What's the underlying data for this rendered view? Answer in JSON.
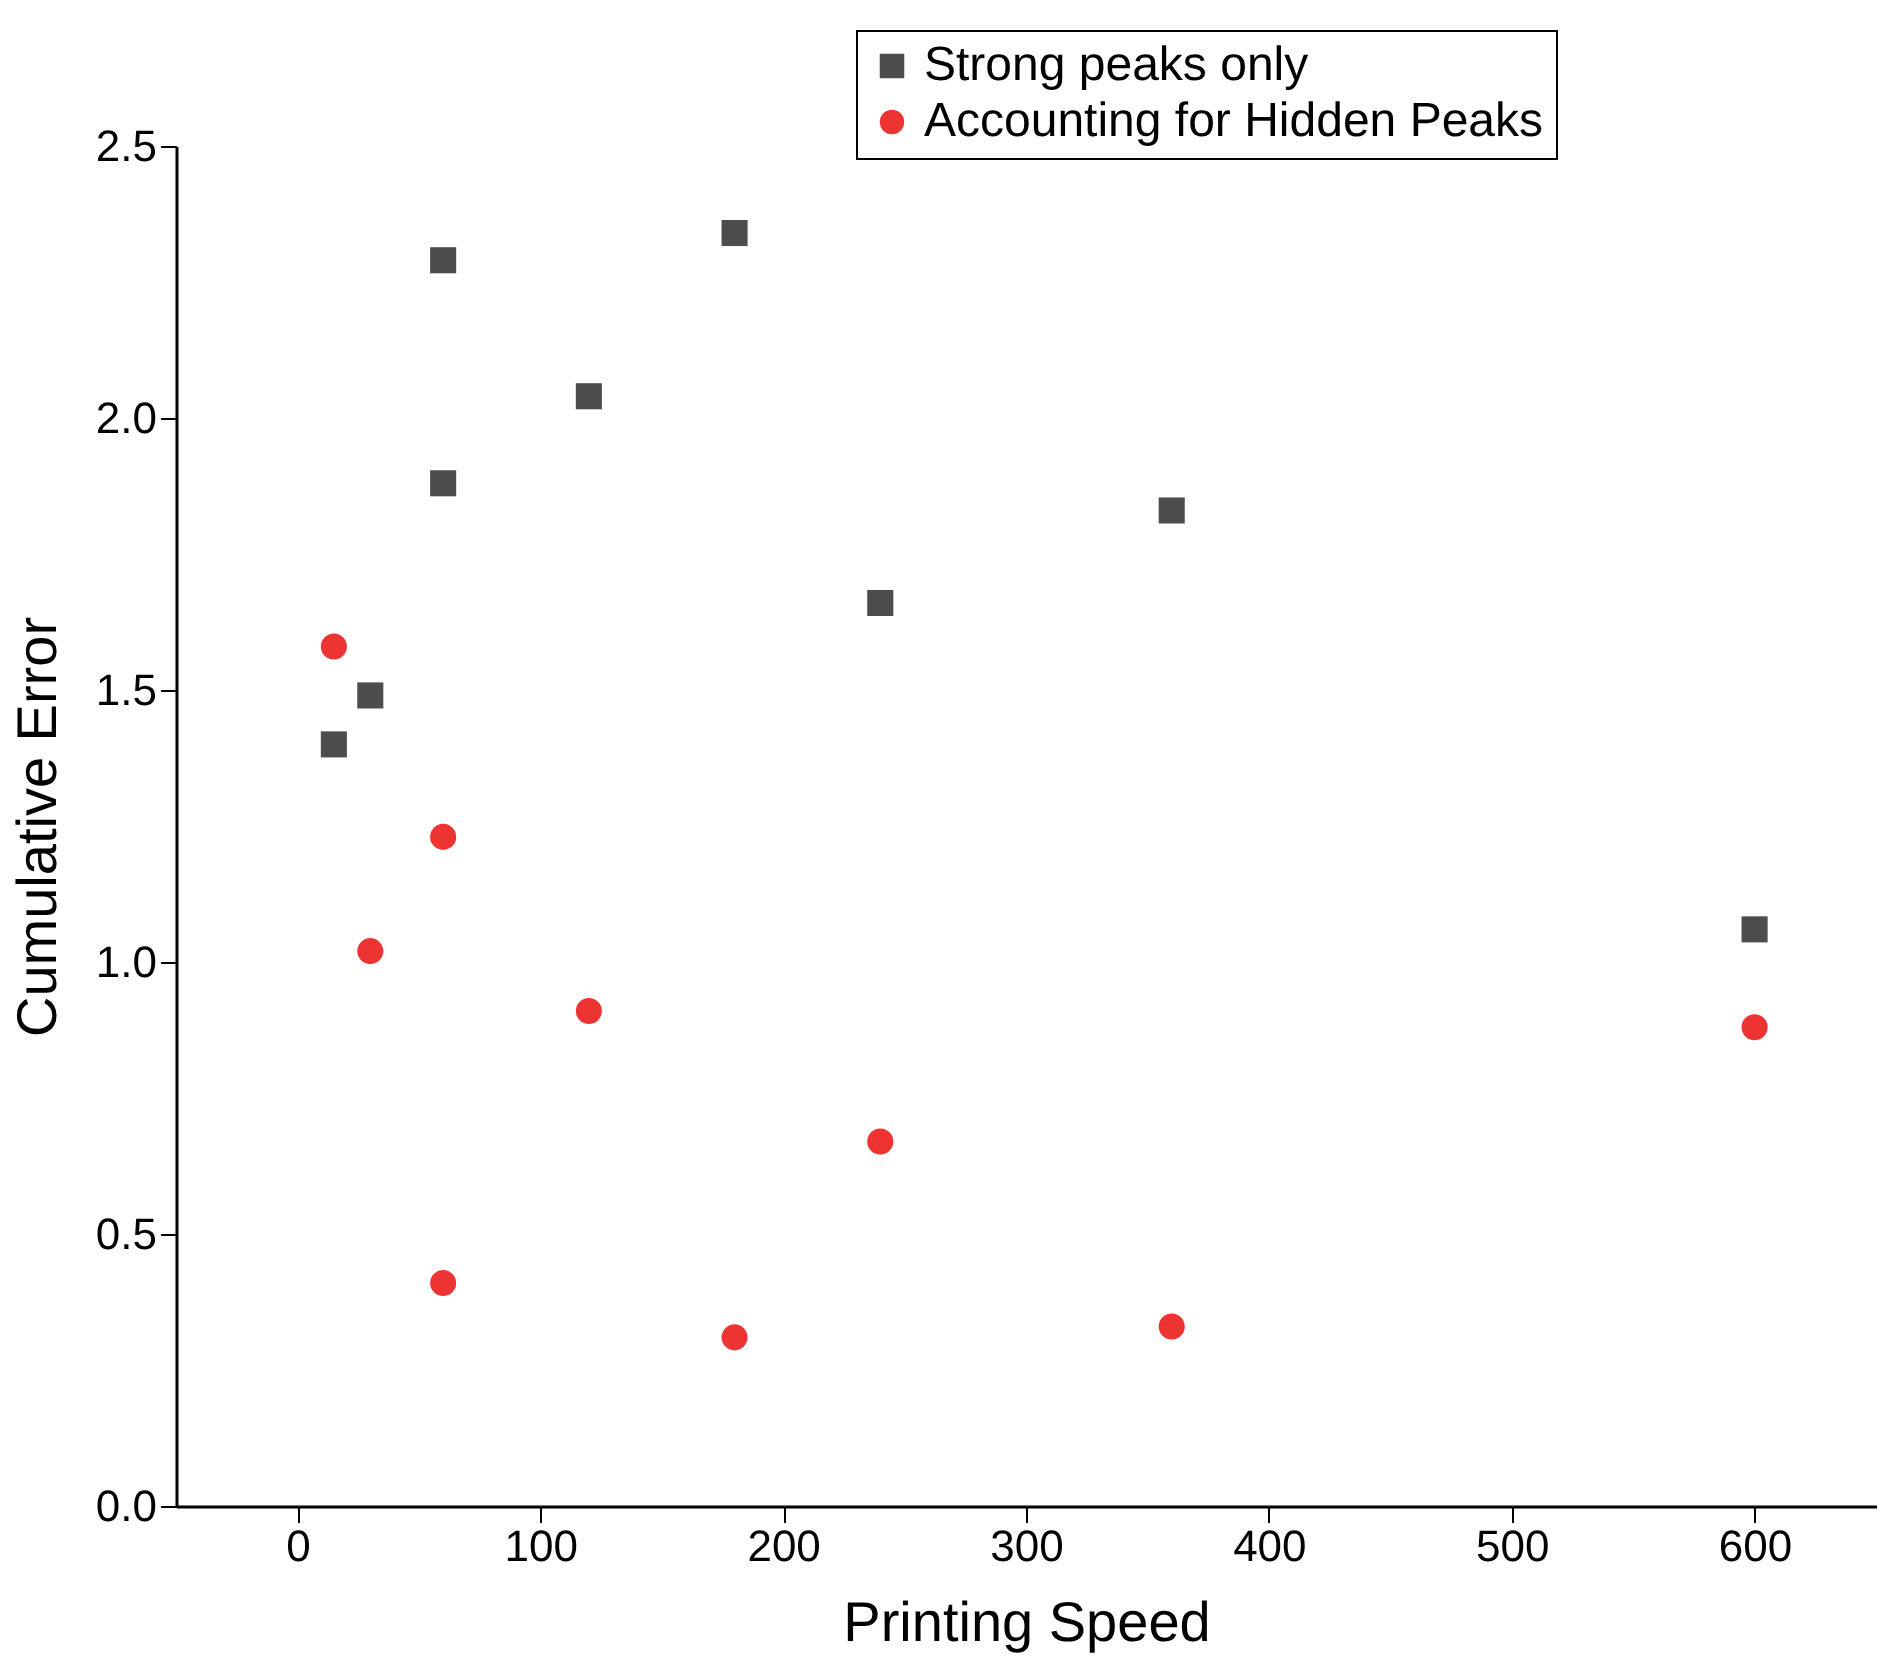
{
  "chart_data": {
    "type": "scatter",
    "xlabel": "Printing Speed",
    "ylabel": "Cumulative Error",
    "xlim": [
      -50,
      650
    ],
    "xticks": [
      0,
      100,
      200,
      300,
      400,
      500,
      600
    ],
    "ylim": [
      0,
      2.5
    ],
    "yticks": [
      {
        "value": 0,
        "label": "0.0"
      },
      0.5,
      {
        "value": 1,
        "label": "1.0"
      },
      1.5,
      {
        "value": 2,
        "label": "2.0"
      },
      2.5
    ],
    "grid": false,
    "legend": "top right",
    "series": [
      {
        "name": "Strong peaks only",
        "color": "#4d4d4d",
        "marker": "square",
        "x": [
          15,
          30,
          60,
          60,
          120,
          180,
          240,
          360,
          600
        ],
        "values": [
          1.4,
          1.49,
          1.88,
          2.29,
          2.04,
          2.34,
          1.66,
          1.83,
          1.06
        ]
      },
      {
        "name": "Accounting for Hidden Peaks",
        "color": "#ee3333",
        "marker": "circle",
        "x": [
          15,
          30,
          60,
          60,
          120,
          180,
          240,
          360,
          600
        ],
        "values": [
          1.58,
          1.02,
          1.23,
          0.41,
          0.91,
          0.31,
          0.67,
          0.33,
          0.88
        ]
      }
    ]
  }
}
